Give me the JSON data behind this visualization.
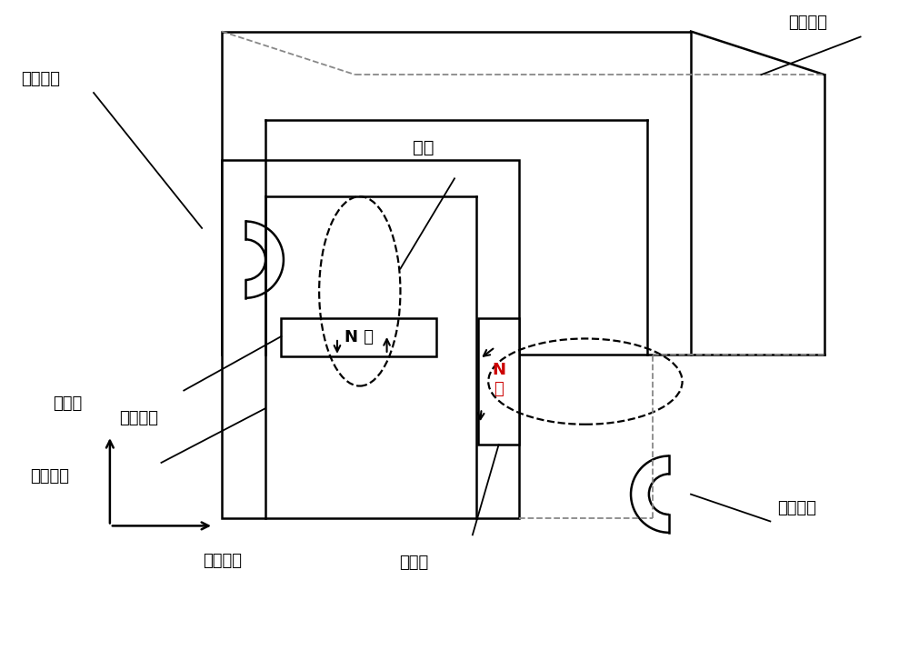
{
  "bg_color": "#ffffff",
  "line_color": "#000000",
  "dashed_color": "#888888",
  "red_color": "#cc0000",
  "fig_width": 10.0,
  "fig_height": 7.37,
  "labels": {
    "stator_core": "定子铁芯",
    "winding_coil_tl": "绕组线圈",
    "winding_coil_br": "绕组线圈",
    "air_gap": "气隙",
    "permanent_magnet_top": "永磁体",
    "permanent_magnet_bot": "永磁体",
    "rotor_core": "转子铁芯",
    "n_pole_top": "N 极",
    "n_pole_bot": "N\n极",
    "axial": "电机轴向",
    "radial": "电机径向"
  }
}
